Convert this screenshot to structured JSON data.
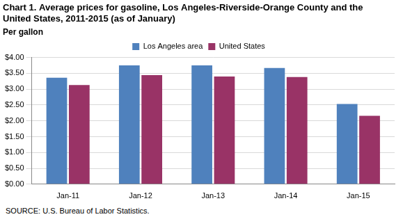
{
  "chart_data": {
    "type": "bar",
    "title": "Chart 1. Average prices for gasoline, Los Angeles-Riverside-Orange County and the United States, 2011-2015 (as of January)",
    "y_label": "Per gallon",
    "source": "SOURCE: U.S. Bureau of Labor Statistics.",
    "categories": [
      "Jan-11",
      "Jan-12",
      "Jan-13",
      "Jan-14",
      "Jan-15"
    ],
    "series": [
      {
        "name": "Los Angeles area",
        "color": "#4f81bd",
        "values": [
          3.36,
          3.75,
          3.75,
          3.67,
          2.53
        ]
      },
      {
        "name": "United States",
        "color": "#993366",
        "values": [
          3.13,
          3.44,
          3.4,
          3.38,
          2.16
        ]
      }
    ],
    "ylim": [
      0,
      4
    ],
    "yticks": [
      {
        "value": 0,
        "label": "$0.00"
      },
      {
        "value": 0.5,
        "label": "$0.50"
      },
      {
        "value": 1,
        "label": "$1.00"
      },
      {
        "value": 1.5,
        "label": "$1.50"
      },
      {
        "value": 2,
        "label": "$2.00"
      },
      {
        "value": 2.5,
        "label": "$2.50"
      },
      {
        "value": 3,
        "label": "$3.00"
      },
      {
        "value": 3.5,
        "label": "$3.50"
      },
      {
        "value": 4,
        "label": "$4.00"
      }
    ],
    "grid": true,
    "legend": "top"
  }
}
